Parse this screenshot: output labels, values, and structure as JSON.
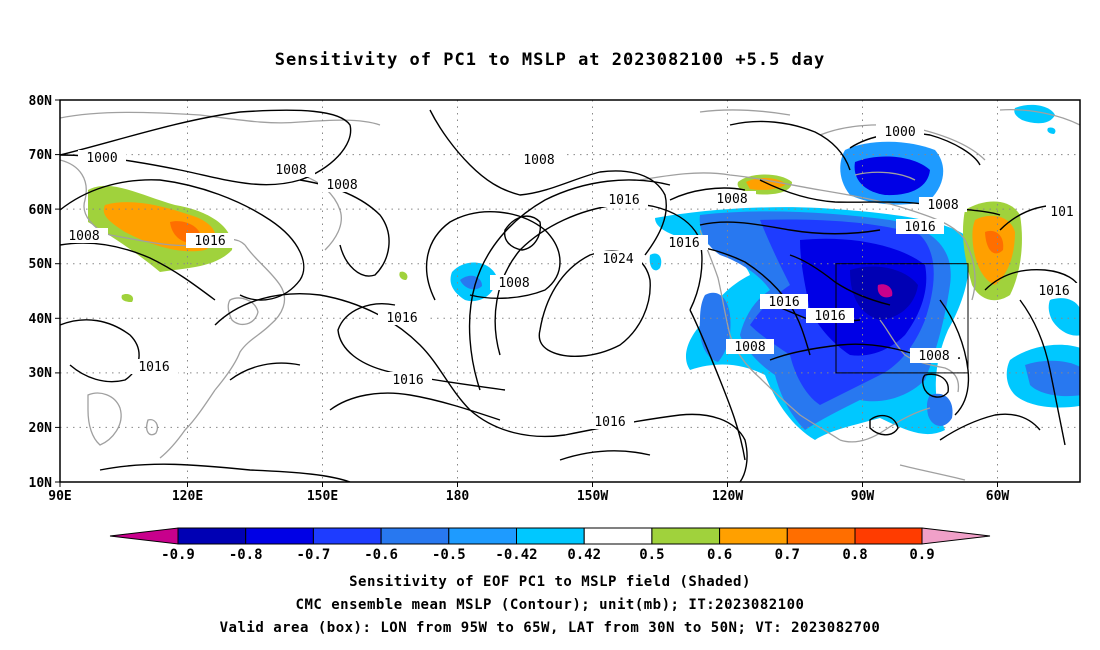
{
  "title": "Sensitivity of PC1 to MSLP at 2023082100 +5.5 day",
  "lat_labels": [
    "80N",
    "70N",
    "60N",
    "50N",
    "40N",
    "30N",
    "20N",
    "10N"
  ],
  "lon_labels": [
    "90E",
    "120E",
    "150E",
    "180",
    "150W",
    "120W",
    "90W",
    "60W"
  ],
  "contour_labels": [
    "1000",
    "1008",
    "1008",
    "1008",
    "1016",
    "1016",
    "1016",
    "1016",
    "1024",
    "1016",
    "1008",
    "1016",
    "1008",
    "1016",
    "1016",
    "1016",
    "1008",
    "1008",
    "1016",
    "1000",
    "1008",
    "1016",
    "101",
    "1008",
    "1016"
  ],
  "colorbar": {
    "ticks": [
      "-0.9",
      "-0.8",
      "-0.7",
      "-0.6",
      "-0.5",
      "-0.42",
      "0.42",
      "0.5",
      "0.6",
      "0.7",
      "0.8",
      "0.9"
    ],
    "colors": [
      "#c8008c",
      "#0000b4",
      "#0000e6",
      "#1e3cff",
      "#2878f0",
      "#1e9bff",
      "#00c8ff",
      "#ffffff",
      "#a0d23c",
      "#ffa000",
      "#ff6e00",
      "#ff3c00",
      "#ff0000",
      "#f0a0c8"
    ]
  },
  "footer": {
    "line1": "Sensitivity of EOF PC1 to MSLP field (Shaded)",
    "line2": "CMC ensemble mean MSLP (Contour); unit(mb); IT:2023082100",
    "line3": "Valid area (box): LON from 95W to 65W, LAT from 30N to 50N; VT: 2023082700"
  }
}
